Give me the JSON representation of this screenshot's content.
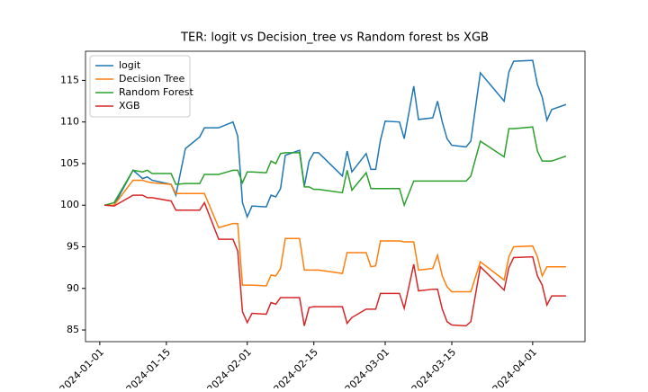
{
  "chart_data": {
    "type": "line",
    "title": "TER: logit vs Decision_tree vs Random forest bs XGB",
    "x": [
      "2024-01-02",
      "2024-01-04",
      "2024-01-08",
      "2024-01-10",
      "2024-01-11",
      "2024-01-12",
      "2024-01-16",
      "2024-01-17",
      "2024-01-19",
      "2024-01-22",
      "2024-01-23",
      "2024-01-26",
      "2024-01-29",
      "2024-01-30",
      "2024-01-31",
      "2024-02-01",
      "2024-02-02",
      "2024-02-05",
      "2024-02-06",
      "2024-02-07",
      "2024-02-08",
      "2024-02-09",
      "2024-02-12",
      "2024-02-13",
      "2024-02-14",
      "2024-02-15",
      "2024-02-16",
      "2024-02-21",
      "2024-02-22",
      "2024-02-23",
      "2024-02-26",
      "2024-02-27",
      "2024-02-28",
      "2024-02-29",
      "2024-03-01",
      "2024-03-04",
      "2024-03-05",
      "2024-03-07",
      "2024-03-08",
      "2024-03-11",
      "2024-03-12",
      "2024-03-13",
      "2024-03-14",
      "2024-03-15",
      "2024-03-18",
      "2024-03-19",
      "2024-03-21",
      "2024-03-26",
      "2024-03-27",
      "2024-03-28",
      "2024-04-01",
      "2024-04-02",
      "2024-04-03",
      "2024-04-04",
      "2024-04-05",
      "2024-04-08"
    ],
    "series": [
      {
        "name": "logit",
        "color": "#1f77b4",
        "values": [
          100,
          100,
          104.2,
          103.2,
          103.4,
          103,
          102.5,
          101.2,
          106.8,
          108.2,
          109.3,
          109.3,
          110,
          108.3,
          100.3,
          98.6,
          99.9,
          99.8,
          101.2,
          101,
          102,
          106,
          106.6,
          102.3,
          105.3,
          106.3,
          106.3,
          103.5,
          106.5,
          104,
          106.2,
          104.3,
          104.3,
          107.8,
          110.1,
          110,
          108,
          114.3,
          110.3,
          110.5,
          112.5,
          110,
          108,
          107.2,
          107,
          107.7,
          115.9,
          112.5,
          116,
          117.3,
          117.4,
          114.5,
          113,
          110.2,
          111.5,
          112.1
        ]
      },
      {
        "name": "Decision Tree",
        "color": "#ff7f0e",
        "values": [
          100,
          100,
          103,
          103,
          102.8,
          102.7,
          102.5,
          101.4,
          101.4,
          101.4,
          101.4,
          97.3,
          97.8,
          97.8,
          90.4,
          90.4,
          90.4,
          90.3,
          91.6,
          91.5,
          92.4,
          96,
          96,
          92.2,
          92.2,
          92.2,
          92.2,
          91.8,
          94.3,
          94.3,
          94.3,
          92.6,
          92.7,
          95.7,
          95.7,
          95.7,
          95.6,
          95.6,
          92.2,
          92.4,
          94,
          91.5,
          90.2,
          89.6,
          89.6,
          89.6,
          93.2,
          91,
          93.8,
          95,
          95.1,
          93.8,
          91.5,
          92.6,
          92.6,
          92.6
        ]
      },
      {
        "name": "Random Forest",
        "color": "#2ca02c",
        "values": [
          100,
          100.3,
          104.2,
          104,
          104.2,
          103.8,
          103.8,
          102.5,
          102.6,
          102.6,
          103.7,
          103.7,
          104.2,
          104.2,
          102.7,
          104,
          104,
          103.9,
          105.3,
          105,
          106.2,
          106.3,
          106.3,
          102.2,
          102.2,
          101.9,
          101.9,
          101.5,
          104.2,
          101.8,
          103.9,
          102,
          102,
          102,
          102,
          102,
          100,
          102.9,
          102.9,
          102.9,
          102.9,
          102.9,
          102.9,
          102.9,
          102.9,
          103.5,
          107.7,
          105.8,
          109.2,
          109.2,
          109.4,
          106.5,
          105.3,
          105.3,
          105.3,
          105.9
        ]
      },
      {
        "name": "XGB",
        "color": "#d62728",
        "values": [
          100,
          99.9,
          101.2,
          101.2,
          100.9,
          100.9,
          100.5,
          99.4,
          99.4,
          99.4,
          100.3,
          95.9,
          95.9,
          94.5,
          87.2,
          85.9,
          87,
          86.9,
          88.3,
          88.1,
          88.9,
          88.9,
          88.9,
          85.5,
          87.7,
          87.8,
          87.8,
          87.8,
          85.8,
          86.5,
          87.5,
          87.5,
          87.5,
          89.4,
          89.4,
          89.4,
          87.6,
          92.9,
          89.7,
          89.9,
          89.9,
          87.5,
          86,
          85.6,
          85.5,
          86,
          92.6,
          89.8,
          92.5,
          93.7,
          93.8,
          91.5,
          90.4,
          88,
          89.1,
          89.1
        ]
      }
    ],
    "xlim": [
      "2023-12-29",
      "2024-04-12"
    ],
    "xticks": [
      "2024-01-01",
      "2024-01-15",
      "2024-02-01",
      "2024-02-15",
      "2024-03-01",
      "2024-03-15",
      "2024-04-01"
    ],
    "ylim": [
      83.6,
      118.5
    ],
    "yticks": [
      85,
      90,
      95,
      100,
      105,
      110,
      115
    ],
    "grid": false,
    "legend": "upper left"
  }
}
